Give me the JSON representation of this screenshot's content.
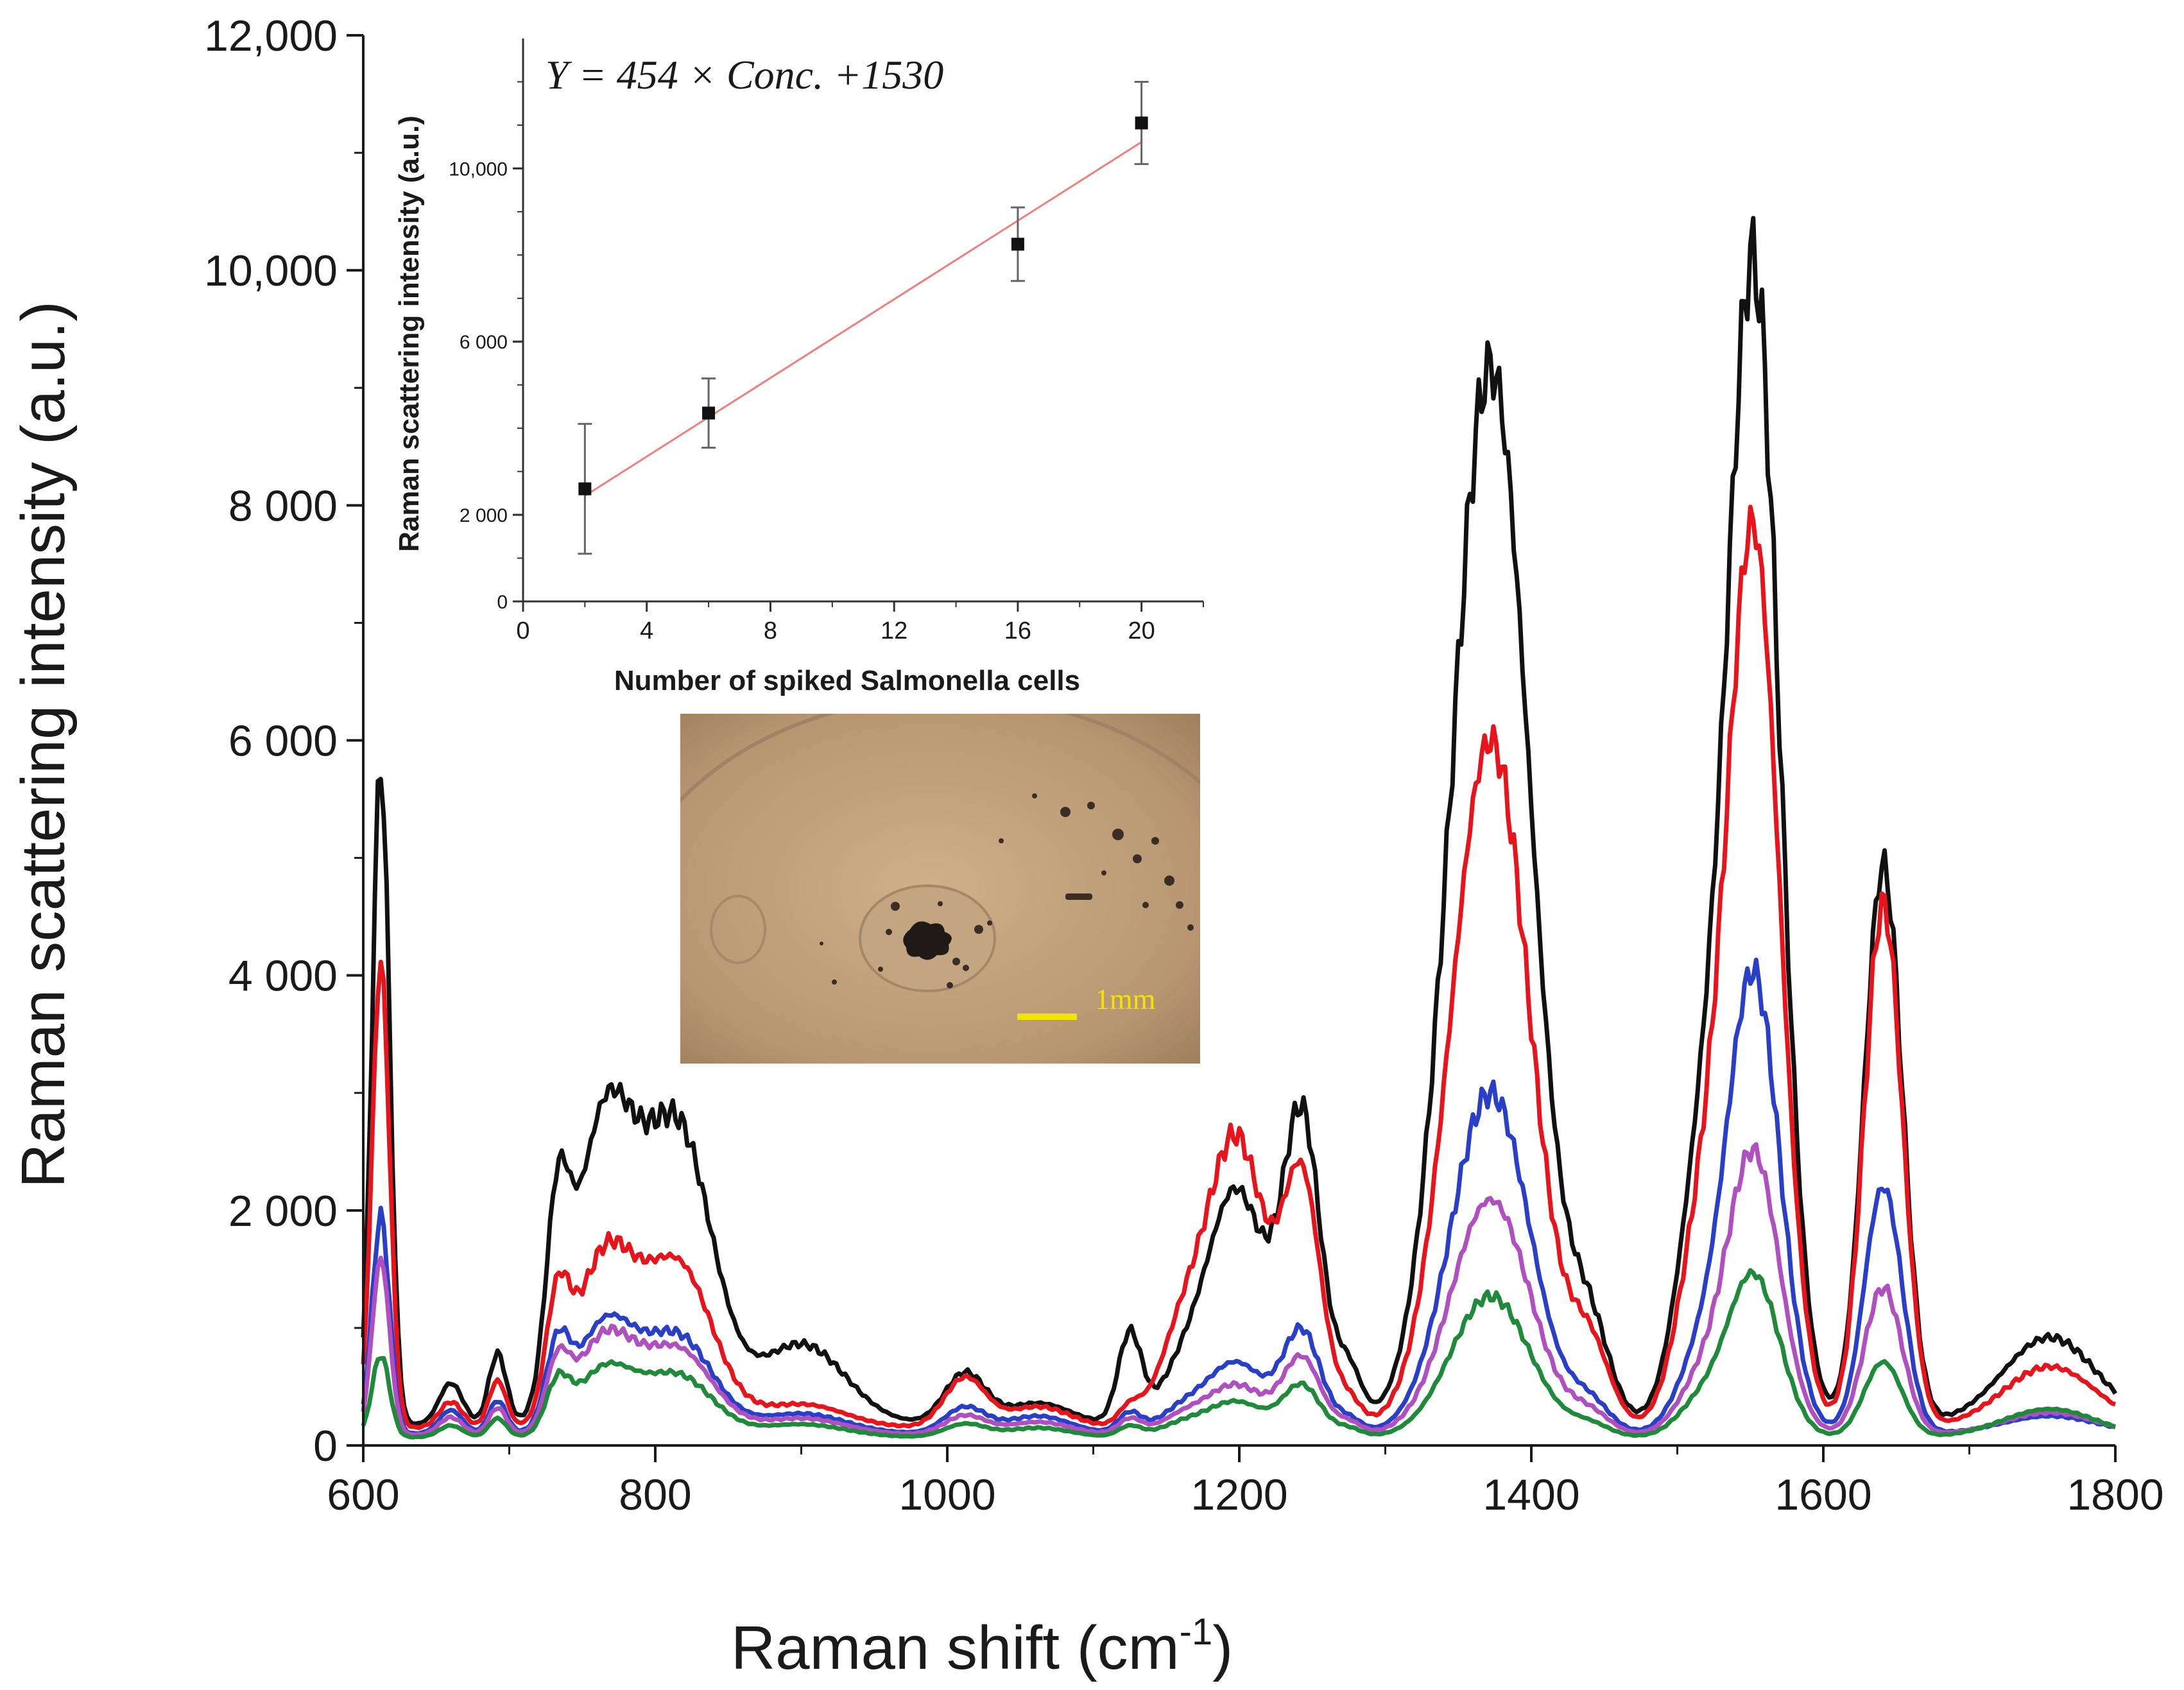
{
  "chart_data": [
    {
      "type": "line",
      "title": "",
      "xlabel": "Raman shift (cm",
      "xlabel_sup": "-1",
      "xlabel_end": ")",
      "ylabel": "Raman scattering intensity (a.u.)",
      "xlim": [
        600,
        1800
      ],
      "ylim": [
        0,
        12000
      ],
      "x_ticks": [
        600,
        800,
        1000,
        1200,
        1400,
        1600,
        1800
      ],
      "x_tick_labels": [
        "600",
        "800",
        "1000",
        "1200",
        "1400",
        "1600",
        "1800"
      ],
      "y_ticks": [
        0,
        2000,
        4000,
        6000,
        8000,
        10000,
        12000
      ],
      "y_tick_labels": [
        "0",
        "2 000",
        "4 000",
        "6 000",
        "8 000",
        "10,000",
        "12,000"
      ],
      "grid": false,
      "peaks": [
        {
          "center": 612,
          "width": 6
        },
        {
          "center": 660,
          "width": 8
        },
        {
          "center": 692,
          "width": 6
        },
        {
          "center": 733,
          "width": 8
        },
        {
          "center": 765,
          "width": 20
        },
        {
          "center": 815,
          "width": 24
        },
        {
          "center": 900,
          "width": 30
        },
        {
          "center": 1012,
          "width": 14
        },
        {
          "center": 1062,
          "width": 22
        },
        {
          "center": 1125,
          "width": 8
        },
        {
          "center": 1160,
          "width": 16
        },
        {
          "center": 1198,
          "width": 20
        },
        {
          "center": 1243,
          "width": 13
        },
        {
          "center": 1275,
          "width": 9
        },
        {
          "center": 1372,
          "width": 27
        },
        {
          "center": 1440,
          "width": 14
        },
        {
          "center": 1515,
          "width": 16
        },
        {
          "center": 1552,
          "width": 18
        },
        {
          "center": 1641,
          "width": 13
        },
        {
          "center": 1755,
          "width": 32
        }
      ],
      "series": [
        {
          "name": "black",
          "color": "#111111",
          "baseline": 180,
          "amplitudes": [
            5600,
            350,
            600,
            1500,
            2500,
            2500,
            680,
            430,
            180,
            760,
            380,
            1980,
            2550,
            450,
            9000,
            750,
            1800,
            9800,
            4750,
            740
          ]
        },
        {
          "name": "red",
          "color": "#e8141c",
          "baseline": 150,
          "amplitudes": [
            3950,
            220,
            400,
            900,
            1400,
            1380,
            200,
            420,
            180,
            160,
            700,
            2450,
            2050,
            220,
            5850,
            650,
            1400,
            7600,
            4450,
            520
          ]
        },
        {
          "name": "blue",
          "color": "#2a3fc8",
          "baseline": 100,
          "amplitudes": [
            1850,
            200,
            280,
            620,
            900,
            820,
            170,
            220,
            150,
            170,
            180,
            600,
            850,
            120,
            2900,
            240,
            550,
            3900,
            2100,
            150
          ]
        },
        {
          "name": "magenta",
          "color": "#b050c0",
          "baseline": 90,
          "amplitudes": [
            1500,
            150,
            230,
            500,
            800,
            720,
            140,
            160,
            110,
            130,
            140,
            420,
            640,
            100,
            2000,
            170,
            380,
            2400,
            1250,
            190
          ]
        },
        {
          "name": "green",
          "color": "#1f8a3a",
          "baseline": 70,
          "amplitudes": [
            700,
            100,
            160,
            380,
            560,
            520,
            110,
            110,
            80,
            90,
            100,
            300,
            430,
            70,
            1200,
            100,
            260,
            1380,
            640,
            240
          ]
        }
      ]
    },
    {
      "type": "scatter",
      "subtype": "calibration-with-error-bars",
      "equation": "Y = 454 × Conc. +1530",
      "xlabel": "Number of spiked Salmonella cells",
      "ylabel": "Raman scattering intensity (a.u.)",
      "xlim": [
        0,
        22
      ],
      "ylim": [
        0,
        13000
      ],
      "x_ticks": [
        0,
        4,
        8,
        12,
        16,
        20
      ],
      "x_tick_labels": [
        "0",
        "4",
        "8",
        "12",
        "16",
        "20"
      ],
      "y_ticks": [
        0,
        2000,
        6000,
        10000
      ],
      "y_tick_labels": [
        "0",
        "2 000",
        "6 000",
        "10,000"
      ],
      "points": [
        {
          "x": 2,
          "y": 2600,
          "err": 1500
        },
        {
          "x": 6,
          "y": 4350,
          "err": 800
        },
        {
          "x": 16,
          "y": 8250,
          "err": 850
        },
        {
          "x": 20,
          "y": 11050,
          "err": 950
        }
      ],
      "fit": {
        "slope": 454,
        "intercept": 1530,
        "x_from": 2,
        "x_to": 20,
        "color": "#f08080"
      }
    }
  ],
  "micrograph": {
    "scale_bar_label": "1mm",
    "scale_bar_color": "#f2e300"
  }
}
